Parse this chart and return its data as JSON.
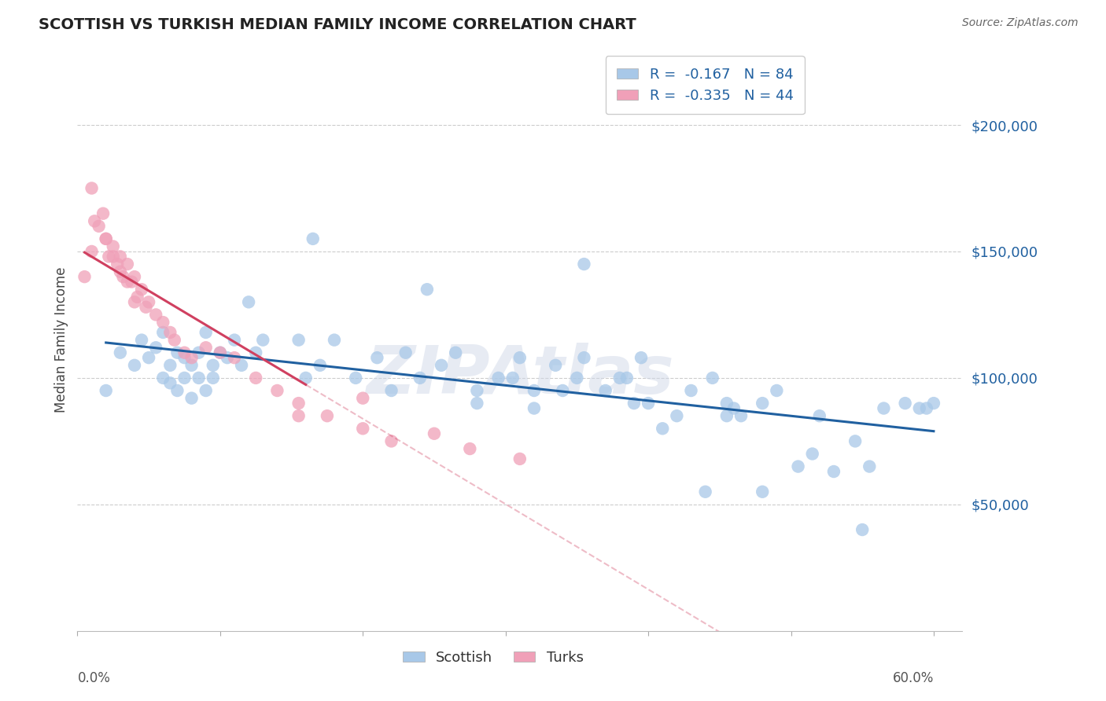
{
  "title": "SCOTTISH VS TURKISH MEDIAN FAMILY INCOME CORRELATION CHART",
  "source": "Source: ZipAtlas.com",
  "ylabel": "Median Family Income",
  "ytick_labels": [
    "$50,000",
    "$100,000",
    "$150,000",
    "$200,000"
  ],
  "ytick_values": [
    50000,
    100000,
    150000,
    200000
  ],
  "xlim": [
    0.0,
    0.62
  ],
  "ylim": [
    0,
    230000
  ],
  "scottish_R": -0.167,
  "scottish_N": 84,
  "turks_R": -0.335,
  "turks_N": 44,
  "scottish_color": "#a8c8e8",
  "scottish_line_color": "#2060a0",
  "turks_color": "#f0a0b8",
  "turks_line_color": "#d04060",
  "background_color": "#ffffff",
  "grid_color": "#cccccc",
  "watermark": "ZIPAtlas",
  "scottish_x": [
    0.03,
    0.04,
    0.045,
    0.05,
    0.055,
    0.06,
    0.06,
    0.065,
    0.065,
    0.07,
    0.07,
    0.075,
    0.075,
    0.08,
    0.08,
    0.085,
    0.085,
    0.09,
    0.09,
    0.095,
    0.095,
    0.1,
    0.105,
    0.11,
    0.115,
    0.12,
    0.125,
    0.13,
    0.02,
    0.155,
    0.16,
    0.17,
    0.18,
    0.195,
    0.21,
    0.22,
    0.23,
    0.24,
    0.255,
    0.265,
    0.28,
    0.295,
    0.31,
    0.32,
    0.335,
    0.35,
    0.355,
    0.37,
    0.385,
    0.395,
    0.41,
    0.42,
    0.43,
    0.445,
    0.455,
    0.465,
    0.48,
    0.49,
    0.505,
    0.515,
    0.53,
    0.545,
    0.555,
    0.565,
    0.58,
    0.59,
    0.355,
    0.28,
    0.46,
    0.52,
    0.6,
    0.595,
    0.245,
    0.165,
    0.32,
    0.39,
    0.455,
    0.48,
    0.305,
    0.55,
    0.38,
    0.34,
    0.4,
    0.44
  ],
  "scottish_y": [
    110000,
    105000,
    115000,
    108000,
    112000,
    100000,
    118000,
    105000,
    98000,
    110000,
    95000,
    108000,
    100000,
    105000,
    92000,
    100000,
    110000,
    95000,
    118000,
    100000,
    105000,
    110000,
    108000,
    115000,
    105000,
    130000,
    110000,
    115000,
    95000,
    115000,
    100000,
    105000,
    115000,
    100000,
    108000,
    95000,
    110000,
    100000,
    105000,
    110000,
    95000,
    100000,
    108000,
    95000,
    105000,
    100000,
    108000,
    95000,
    100000,
    108000,
    80000,
    85000,
    95000,
    100000,
    90000,
    85000,
    90000,
    95000,
    65000,
    70000,
    63000,
    75000,
    65000,
    88000,
    90000,
    88000,
    145000,
    90000,
    88000,
    85000,
    90000,
    88000,
    135000,
    155000,
    88000,
    90000,
    85000,
    55000,
    100000,
    40000,
    100000,
    95000,
    90000,
    55000
  ],
  "turks_x": [
    0.005,
    0.01,
    0.015,
    0.018,
    0.02,
    0.022,
    0.025,
    0.028,
    0.03,
    0.032,
    0.035,
    0.038,
    0.04,
    0.042,
    0.045,
    0.048,
    0.05,
    0.055,
    0.06,
    0.065,
    0.01,
    0.012,
    0.02,
    0.025,
    0.03,
    0.035,
    0.04,
    0.068,
    0.075,
    0.08,
    0.09,
    0.1,
    0.11,
    0.125,
    0.14,
    0.155,
    0.175,
    0.2,
    0.22,
    0.155,
    0.2,
    0.25,
    0.275,
    0.31
  ],
  "turks_y": [
    140000,
    175000,
    160000,
    165000,
    155000,
    148000,
    152000,
    145000,
    148000,
    140000,
    145000,
    138000,
    140000,
    132000,
    135000,
    128000,
    130000,
    125000,
    122000,
    118000,
    150000,
    162000,
    155000,
    148000,
    142000,
    138000,
    130000,
    115000,
    110000,
    108000,
    112000,
    110000,
    108000,
    100000,
    95000,
    90000,
    85000,
    80000,
    75000,
    85000,
    92000,
    78000,
    72000,
    68000
  ]
}
